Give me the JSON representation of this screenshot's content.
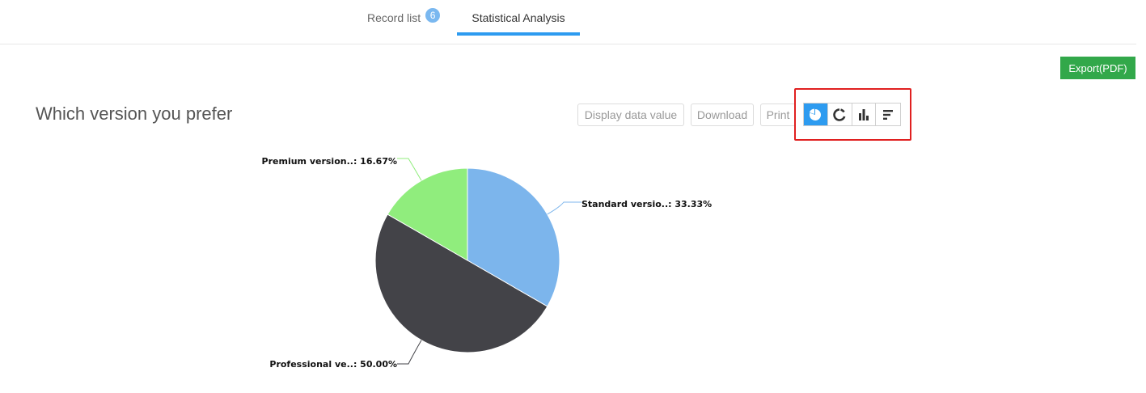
{
  "tabs": {
    "record_list": {
      "label": "Record list",
      "badge": "6"
    },
    "statistical_analysis": {
      "label": "Statistical Analysis"
    }
  },
  "export_button": {
    "label": "Export(PDF)"
  },
  "chart_title": "Which version you prefer",
  "toolbar": {
    "display_data_value": "Display data value",
    "download": "Download",
    "print": "Print",
    "chart_types": [
      {
        "icon": "pie-chart-icon",
        "active": true
      },
      {
        "icon": "donut-chart-icon",
        "active": false
      },
      {
        "icon": "bar-chart-icon",
        "active": false
      },
      {
        "icon": "horizontal-bar-chart-icon",
        "active": false
      }
    ]
  },
  "colors": {
    "accent": "#2d9bf0",
    "export_green": "#32a84a",
    "highlight_red": "#e02020"
  },
  "chart_data": {
    "type": "pie",
    "title": "Which version you prefer",
    "slices": [
      {
        "label": "Standard versio..: 33.33%",
        "value": 33.33,
        "color": "#7cb5ec"
      },
      {
        "label": "Professional ve..: 50.00%",
        "value": 50.0,
        "color": "#434348"
      },
      {
        "label": "Premium version..: 16.67%",
        "value": 16.67,
        "color": "#90ed7d"
      }
    ]
  }
}
